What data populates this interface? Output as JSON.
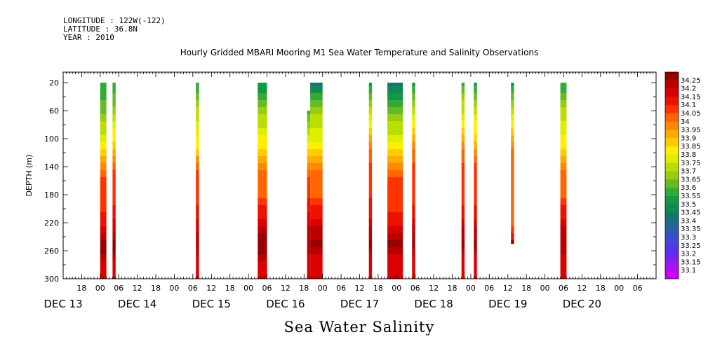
{
  "header": {
    "longitude": "LONGITUDE : 122W(-122)",
    "latitude": "LATITUDE : 36.8N",
    "year": "YEAR : 2010"
  },
  "chart_data": {
    "type": "heatmap",
    "title": "Hourly Gridded MBARI Mooring M1 Sea Water Temperature and Salinity Observations",
    "main_title": "Sea Water Salinity",
    "xlabel": "",
    "ylabel": "DEPTH (m)",
    "x_units": "hours since 00 DEC 13",
    "xlim": [
      -12,
      180
    ],
    "ylim": [
      300,
      5
    ],
    "y_ticks": [
      20,
      60,
      100,
      140,
      180,
      220,
      260,
      300
    ],
    "x_tick_hours": [
      -6,
      0,
      6,
      12,
      18,
      24,
      30,
      36,
      42,
      48,
      54,
      60,
      66,
      72,
      78,
      84,
      90,
      96,
      102,
      108,
      114,
      120,
      126,
      132,
      138,
      144,
      150,
      156,
      162,
      168,
      174
    ],
    "x_tick_labels": [
      "18",
      "00",
      "06",
      "12",
      "18",
      "00",
      "06",
      "12",
      "18",
      "00",
      "06",
      "12",
      "18",
      "00",
      "06",
      "12",
      "18",
      "00",
      "06",
      "12",
      "18",
      "00",
      "06",
      "12",
      "18",
      "00",
      "06",
      "12",
      "18",
      "00",
      "06"
    ],
    "date_labels": [
      {
        "label": "DEC 13",
        "hour": -12
      },
      {
        "label": "DEC 14",
        "hour": 12
      },
      {
        "label": "DEC 15",
        "hour": 36
      },
      {
        "label": "DEC 16",
        "hour": 60
      },
      {
        "label": "DEC 17",
        "hour": 84
      },
      {
        "label": "DEC 18",
        "hour": 108
      },
      {
        "label": "DEC 19",
        "hour": 132
      },
      {
        "label": "DEC 20",
        "hour": 156
      }
    ],
    "colorbar": {
      "levels": [
        "34.25",
        "34.2",
        "34.15",
        "34.1",
        "34.05",
        "34",
        "33.95",
        "33.9",
        "33.85",
        "33.8",
        "33.75",
        "33.7",
        "33.65",
        "33.6",
        "33.55",
        "33.5",
        "33.45",
        "33.4",
        "33.35",
        "33.3",
        "33.25",
        "33.2",
        "33.15",
        "33.1"
      ],
      "colors": [
        "#990000",
        "#bb0000",
        "#dd0000",
        "#ee1100",
        "#ff3300",
        "#ff6600",
        "#ff8800",
        "#ffaa00",
        "#ffcc00",
        "#ffee00",
        "#ddee00",
        "#bbdd00",
        "#99cc11",
        "#66bb22",
        "#33aa33",
        "#119944",
        "#118855",
        "#117766",
        "#226699",
        "#3355bb",
        "#4444dd",
        "#5533ee",
        "#7722ee",
        "#aa11ee",
        "#cc00ff"
      ]
    },
    "depths": [
      20,
      30,
      40,
      50,
      60,
      70,
      80,
      90,
      100,
      110,
      120,
      130,
      140,
      150,
      160,
      170,
      180,
      190,
      200,
      210,
      220,
      230,
      240,
      250,
      260,
      270,
      280,
      290,
      300
    ],
    "columns": [
      {
        "start": 0,
        "end": 2,
        "top": 20,
        "bottom": 300,
        "values": [
          33.55,
          33.55,
          33.55,
          33.6,
          33.6,
          33.65,
          33.7,
          33.72,
          33.76,
          33.8,
          33.85,
          33.9,
          33.95,
          34.0,
          34.05,
          34.05,
          34.05,
          34.05,
          34.07,
          34.1,
          34.12,
          34.15,
          34.2,
          34.25,
          34.25,
          34.2,
          34.15,
          34.15,
          34.15
        ]
      },
      {
        "start": 4,
        "end": 5,
        "top": 20,
        "bottom": 300,
        "values": [
          33.55,
          33.55,
          33.6,
          33.6,
          33.65,
          33.7,
          33.75,
          33.8,
          33.82,
          33.85,
          33.9,
          33.95,
          34.0,
          34.05,
          34.05,
          34.05,
          34.05,
          34.07,
          34.1,
          34.12,
          34.15,
          34.18,
          34.2,
          34.25,
          34.25,
          34.2,
          34.15,
          34.15,
          34.15
        ]
      },
      {
        "start": 31,
        "end": 32,
        "top": 20,
        "bottom": 300,
        "values": [
          33.55,
          33.55,
          33.6,
          33.65,
          33.7,
          33.72,
          33.75,
          33.78,
          33.8,
          33.82,
          33.85,
          33.95,
          34.0,
          34.05,
          34.05,
          34.05,
          34.05,
          34.07,
          34.1,
          34.12,
          34.15,
          34.15,
          34.2,
          34.2,
          34.2,
          34.15,
          34.15,
          34.15,
          34.15
        ]
      },
      {
        "start": 51,
        "end": 54,
        "top": 20,
        "bottom": 300,
        "values": [
          33.5,
          33.5,
          33.55,
          33.6,
          33.65,
          33.7,
          33.72,
          33.75,
          33.8,
          33.82,
          33.85,
          33.9,
          33.95,
          34.0,
          34.0,
          34.0,
          34.0,
          34.05,
          34.1,
          34.12,
          34.15,
          34.2,
          34.25,
          34.25,
          34.25,
          34.2,
          34.15,
          34.15,
          34.15
        ]
      },
      {
        "start": 67,
        "end": 68,
        "top": 60,
        "bottom": 300,
        "values": [
          33.55,
          33.55,
          33.55,
          33.55,
          33.55,
          33.6,
          33.65,
          33.7,
          33.75,
          33.8,
          33.85,
          33.9,
          33.95,
          34.0,
          34.05,
          34.05,
          34.05,
          34.1,
          34.1,
          34.15,
          34.15,
          34.2,
          34.2,
          34.2,
          34.2,
          34.15,
          34.15,
          34.15,
          34.15
        ]
      },
      {
        "start": 68,
        "end": 72,
        "top": 20,
        "bottom": 300,
        "values": [
          33.4,
          33.45,
          33.55,
          33.6,
          33.65,
          33.7,
          33.72,
          33.75,
          33.78,
          33.8,
          33.85,
          33.9,
          33.95,
          34.0,
          34.0,
          34.0,
          34.0,
          34.05,
          34.1,
          34.12,
          34.15,
          34.2,
          34.2,
          34.25,
          34.2,
          34.15,
          34.15,
          34.15,
          34.15
        ]
      },
      {
        "start": 87,
        "end": 88,
        "top": 20,
        "bottom": 300,
        "values": [
          33.5,
          33.55,
          33.6,
          33.65,
          33.7,
          33.75,
          33.8,
          33.85,
          33.9,
          33.95,
          34.0,
          34.0,
          34.05,
          34.05,
          34.05,
          34.05,
          34.05,
          34.1,
          34.1,
          34.12,
          34.15,
          34.2,
          34.2,
          34.25,
          34.2,
          34.15,
          34.15,
          34.15,
          34.15
        ]
      },
      {
        "start": 93,
        "end": 98,
        "top": 20,
        "bottom": 300,
        "values": [
          33.4,
          33.45,
          33.5,
          33.55,
          33.6,
          33.65,
          33.7,
          33.72,
          33.75,
          33.8,
          33.85,
          33.9,
          33.95,
          34.0,
          34.05,
          34.05,
          34.05,
          34.05,
          34.07,
          34.1,
          34.12,
          34.15,
          34.2,
          34.25,
          34.2,
          34.15,
          34.15,
          34.15,
          34.15
        ]
      },
      {
        "start": 101,
        "end": 102,
        "top": 20,
        "bottom": 300,
        "values": [
          33.5,
          33.55,
          33.6,
          33.65,
          33.7,
          33.75,
          33.8,
          33.85,
          33.9,
          33.95,
          34.0,
          34.0,
          34.05,
          34.05,
          34.05,
          34.05,
          34.05,
          34.07,
          34.1,
          34.12,
          34.15,
          34.2,
          34.2,
          34.25,
          34.2,
          34.15,
          34.15,
          34.15,
          34.15
        ]
      },
      {
        "start": 117,
        "end": 118,
        "top": 20,
        "bottom": 300,
        "values": [
          33.55,
          33.6,
          33.65,
          33.7,
          33.72,
          33.75,
          33.8,
          33.85,
          33.9,
          33.95,
          34.0,
          34.0,
          34.05,
          34.05,
          34.05,
          34.05,
          34.05,
          34.07,
          34.1,
          34.12,
          34.15,
          34.2,
          34.2,
          34.25,
          34.2,
          34.15,
          34.15,
          34.15,
          34.15
        ]
      },
      {
        "start": 121,
        "end": 122,
        "top": 20,
        "bottom": 300,
        "values": [
          33.5,
          33.55,
          33.6,
          33.65,
          33.7,
          33.75,
          33.8,
          33.82,
          33.85,
          33.9,
          33.95,
          34.0,
          34.05,
          34.05,
          34.05,
          34.05,
          34.05,
          34.07,
          34.1,
          34.12,
          34.15,
          34.2,
          34.2,
          34.25,
          34.2,
          34.15,
          34.15,
          34.15,
          34.15
        ]
      },
      {
        "start": 133,
        "end": 134,
        "top": 20,
        "bottom": 250,
        "values": [
          33.5,
          33.55,
          33.6,
          33.65,
          33.7,
          33.75,
          33.8,
          33.85,
          33.9,
          33.95,
          34.0,
          34.0,
          34.0,
          34.0,
          34.0,
          34.0,
          34.0,
          34.0,
          34.0,
          34.0,
          34.0,
          34.05,
          34.1,
          34.25,
          null,
          null,
          null,
          null,
          null
        ]
      },
      {
        "start": 149,
        "end": 151,
        "top": 20,
        "bottom": 300,
        "values": [
          33.55,
          33.55,
          33.6,
          33.65,
          33.7,
          33.72,
          33.75,
          33.78,
          33.8,
          33.82,
          33.85,
          33.9,
          33.95,
          34.0,
          34.0,
          34.0,
          34.0,
          34.05,
          34.1,
          34.12,
          34.15,
          34.2,
          34.2,
          34.2,
          34.2,
          34.15,
          34.15,
          34.15,
          34.15
        ]
      }
    ]
  }
}
